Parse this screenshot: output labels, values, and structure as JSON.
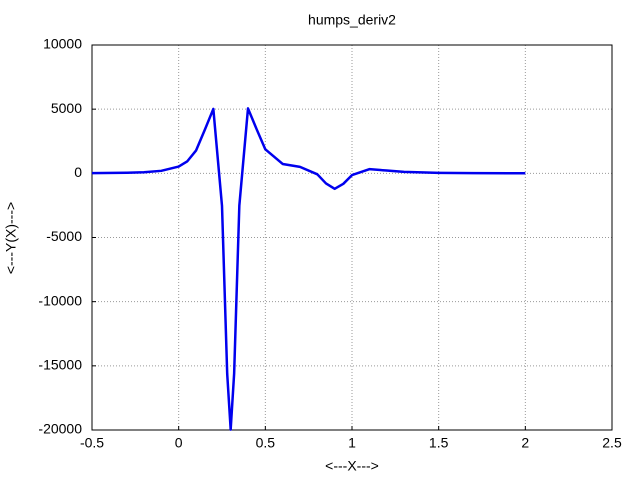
{
  "chart_data": {
    "type": "line",
    "title": "humps_deriv2",
    "xlabel": "<---X--->",
    "ylabel": "<---Y(X)--->",
    "x": [
      -0.5,
      -0.3,
      -0.2,
      -0.1,
      0,
      0.05,
      0.1,
      0.15,
      0.2,
      0.25,
      0.28,
      0.3,
      0.32,
      0.35,
      0.4,
      0.45,
      0.5,
      0.6,
      0.7,
      0.8,
      0.85,
      0.9,
      0.95,
      1.0,
      1.1,
      1.2,
      1.3,
      1.5,
      1.7,
      2.0
    ],
    "values": [
      15.4,
      44.9,
      87.9,
      196.6,
      527.8,
      941,
      1772,
      3365,
      5019,
      -2535,
      -15617,
      -19967,
      -15610,
      -2517,
      5058,
      3430,
      1870,
      729,
      504,
      -75.8,
      -788,
      -1208,
      -816,
      -136.6,
      326.4,
      218.2,
      115.8,
      35.3,
      13.5,
      4.4
    ],
    "color": "#0000ee",
    "xlim": [
      -0.5,
      2.5
    ],
    "xticks": [
      -0.5,
      0,
      0.5,
      1,
      1.5,
      2,
      2.5
    ],
    "ylim": [
      -20000,
      10000
    ],
    "yticks": [
      -20000,
      -15000,
      -10000,
      -5000,
      0,
      5000,
      10000
    ],
    "grid": true
  }
}
